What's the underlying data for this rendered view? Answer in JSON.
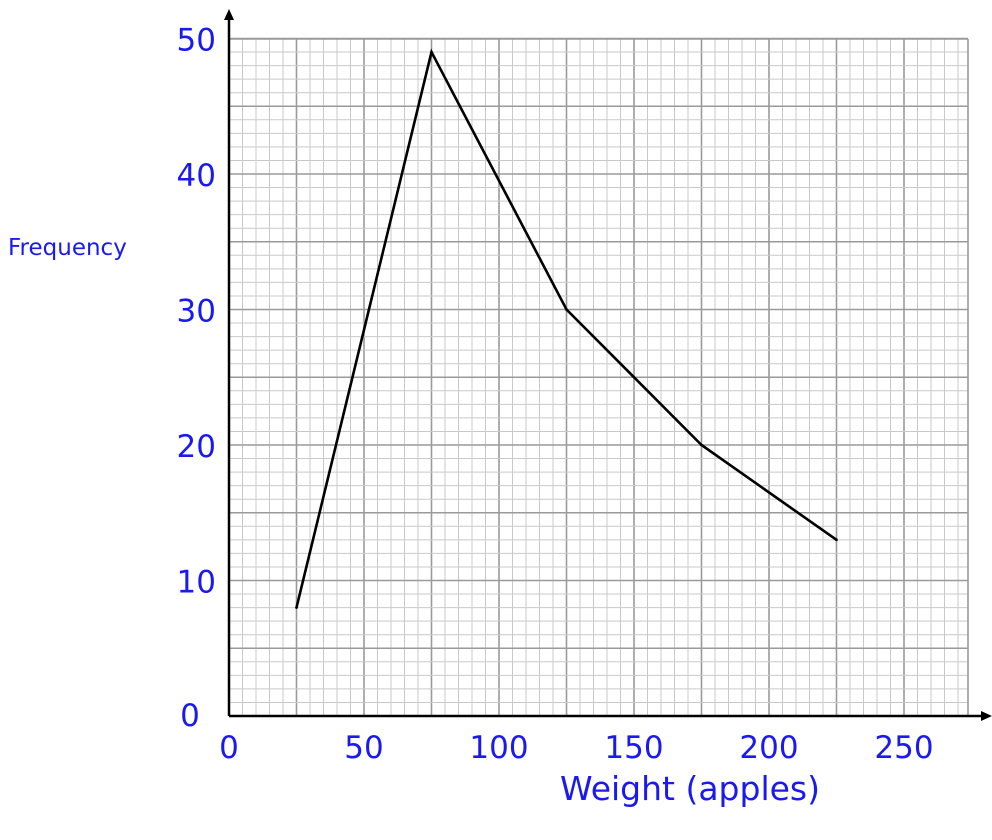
{
  "chart_data": {
    "type": "line",
    "title": "",
    "xlabel": "Weight (apples)",
    "ylabel": "Frequency",
    "xlim": [
      0,
      275
    ],
    "ylim": [
      0,
      50
    ],
    "x_ticks": [
      0,
      50,
      100,
      150,
      200,
      250
    ],
    "y_ticks": [
      0,
      10,
      20,
      30,
      40,
      50
    ],
    "grid": true,
    "colors": {
      "line": "#000000",
      "labels": "#1a1af0",
      "grid_major": "#9a9a9a",
      "grid_minor": "#c9c9c9"
    },
    "series": [
      {
        "x": [
          25,
          75,
          125,
          175,
          225
        ],
        "y": [
          8,
          49,
          30,
          20,
          13
        ]
      }
    ]
  }
}
